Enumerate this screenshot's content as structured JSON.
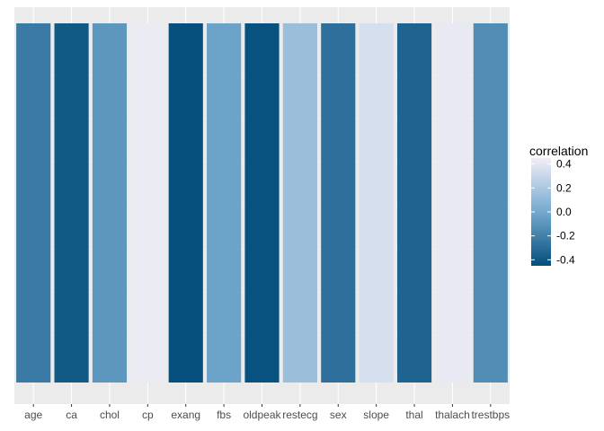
{
  "chart_data": {
    "type": "heatmap",
    "title": "",
    "xlabel": "",
    "ylabel": "",
    "categories": [
      "age",
      "ca",
      "chol",
      "cp",
      "exang",
      "fbs",
      "oldpeak",
      "restecg",
      "sex",
      "slope",
      "thal",
      "thalach",
      "trestbps"
    ],
    "values": [
      -0.23,
      -0.39,
      -0.09,
      0.43,
      -0.44,
      -0.03,
      -0.43,
      0.14,
      -0.28,
      0.35,
      -0.34,
      0.42,
      -0.14
    ],
    "legend": {
      "title": "correlation",
      "position": "right",
      "ticks": [
        0.4,
        0.2,
        0.0,
        -0.2,
        -0.4
      ],
      "tick_labels": [
        "0.4",
        "0.2",
        "0.0",
        "-0.2",
        "-0.4"
      ],
      "range": [
        -0.45,
        0.45
      ]
    },
    "colors": {
      "panel_background": "#ebebeb",
      "grid": "#ffffff",
      "scale_low": "#034e7b",
      "scale_mid": "#74a9cf",
      "scale_high": "#f1eef6"
    },
    "grid": true
  }
}
